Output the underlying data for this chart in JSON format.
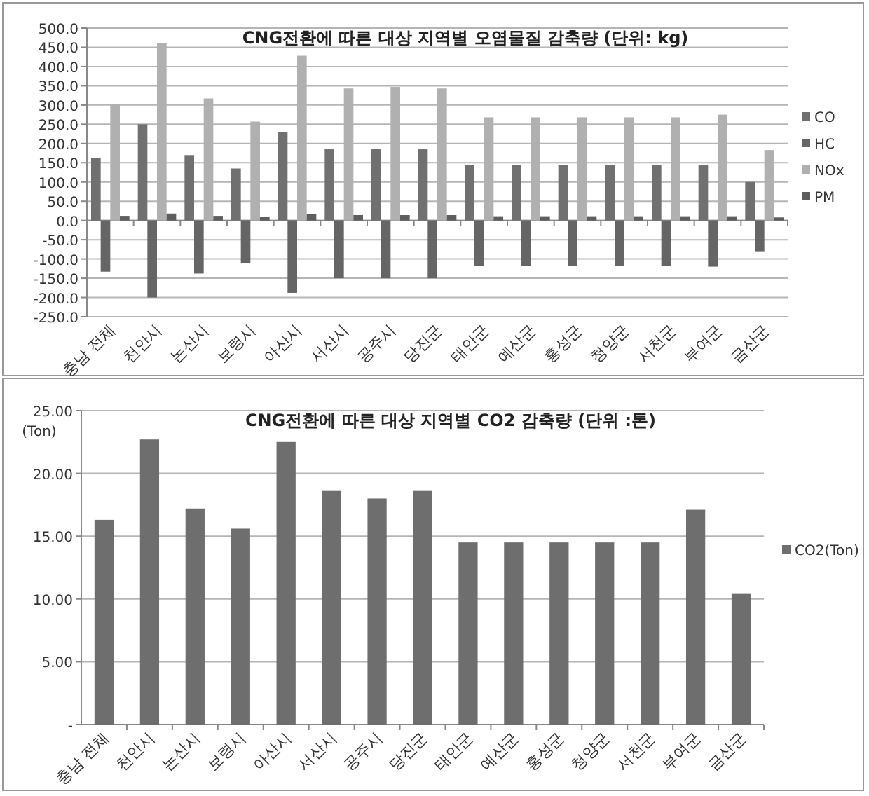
{
  "chart_data": [
    {
      "type": "bar",
      "title": "CNG전환에 따른  대상 지역별 오염물질 감축량 (단위: kg)",
      "categories": [
        "충남 전체",
        "천안시",
        "논산시",
        "보령시",
        "아산시",
        "서산시",
        "공주시",
        "당진군",
        "태안군",
        "예산군",
        "홍성군",
        "청양군",
        "서천군",
        "부여군",
        "금산군"
      ],
      "series": [
        {
          "name": "CO",
          "color": "#707070",
          "values": [
            163,
            250,
            170,
            135,
            230,
            185,
            185,
            185,
            145,
            145,
            145,
            145,
            145,
            145,
            100
          ]
        },
        {
          "name": "HC",
          "color": "#656565",
          "values": [
            -133,
            -200,
            -138,
            -110,
            -188,
            -150,
            -150,
            -150,
            -118,
            -118,
            -118,
            -118,
            -118,
            -120,
            -80
          ]
        },
        {
          "name": "NOx",
          "color": "#b0b0b0",
          "values": [
            302,
            460,
            317,
            257,
            428,
            343,
            347,
            343,
            268,
            268,
            268,
            268,
            268,
            275,
            183
          ]
        },
        {
          "name": "PM",
          "color": "#5e5e5e",
          "values": [
            12,
            18,
            12,
            10,
            17,
            14,
            14,
            14,
            11,
            11,
            11,
            11,
            11,
            11,
            8
          ]
        }
      ],
      "ylim": [
        -250,
        500
      ],
      "yticks": [
        {
          "value": -250,
          "label": "-250.0"
        },
        {
          "value": -200,
          "label": "-200.0"
        },
        {
          "value": -150,
          "label": "-150.0"
        },
        {
          "value": -100,
          "label": "-100.0"
        },
        {
          "value": -50,
          "label": "-50.0"
        },
        {
          "value": 0,
          "label": "0.0"
        },
        {
          "value": 50,
          "label": "50.0"
        },
        {
          "value": 100,
          "label": "100.0"
        },
        {
          "value": 150,
          "label": "150.0"
        },
        {
          "value": 200,
          "label": "200.0"
        },
        {
          "value": 250,
          "label": "250.0"
        },
        {
          "value": 300,
          "label": "300.0"
        },
        {
          "value": 350,
          "label": "350.0"
        },
        {
          "value": 400,
          "label": "400.0"
        },
        {
          "value": 450,
          "label": "450.0"
        },
        {
          "value": 500,
          "label": "500.0"
        }
      ],
      "grid": "y",
      "legend": "right"
    },
    {
      "type": "bar",
      "title": "CNG전환에 따른  대상 지역별 CO2 감축량 (단위 :톤)",
      "ylabel": "(Ton)",
      "categories": [
        "충남 전체",
        "천안시",
        "논산시",
        "보령시",
        "아산시",
        "서산시",
        "공주시",
        "당진군",
        "태안군",
        "예산군",
        "홍성군",
        "청양군",
        "서천군",
        "부여군",
        "금산군"
      ],
      "series": [
        {
          "name": "CO2(Ton)",
          "color": "#6e6e6e",
          "values": [
            16.3,
            22.7,
            17.2,
            15.6,
            22.5,
            18.6,
            18.0,
            18.6,
            14.5,
            14.5,
            14.5,
            14.5,
            14.5,
            17.1,
            10.4
          ]
        }
      ],
      "ylim": [
        0,
        25
      ],
      "yticks": [
        {
          "value": 0,
          "label": "-"
        },
        {
          "value": 5,
          "label": "5.00"
        },
        {
          "value": 10,
          "label": "10.00"
        },
        {
          "value": 15,
          "label": "15.00"
        },
        {
          "value": 20,
          "label": "20.00"
        },
        {
          "value": 25,
          "label": "25.00"
        }
      ],
      "grid": "y",
      "legend": "right"
    }
  ]
}
